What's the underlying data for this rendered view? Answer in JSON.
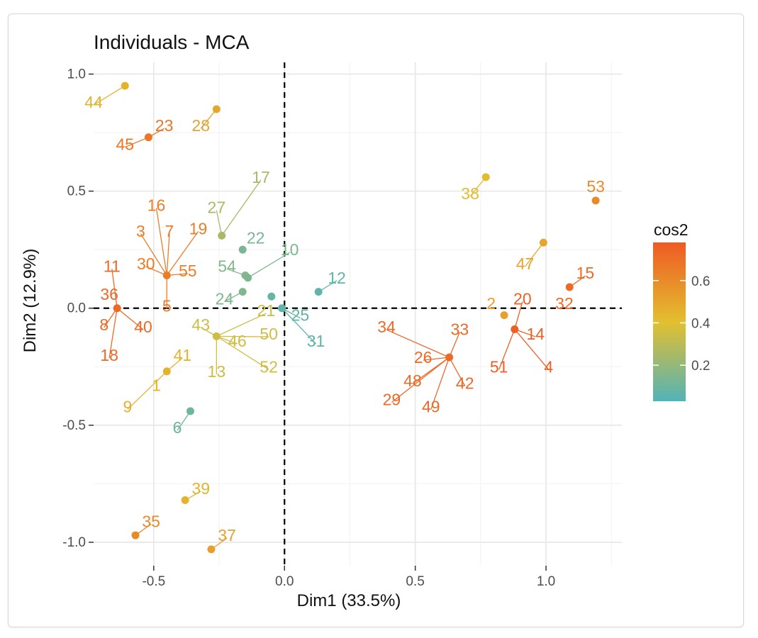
{
  "chart_data": {
    "type": "scatter",
    "title": "Individuals - MCA",
    "xlabel": "Dim1 (33.5%)",
    "ylabel": "Dim2 (12.9%)",
    "xlim": [
      -0.73,
      1.29
    ],
    "ylim": [
      -1.1,
      1.05
    ],
    "x_ticks": [
      {
        "value": -0.5,
        "label": "-0.5"
      },
      {
        "value": 0.0,
        "label": "0.0"
      },
      {
        "value": 0.5,
        "label": "0.5"
      },
      {
        "value": 1.0,
        "label": "1.0"
      }
    ],
    "y_ticks": [
      {
        "value": 1.0,
        "label": "1.0"
      },
      {
        "value": 0.5,
        "label": "0.5"
      },
      {
        "value": 0.0,
        "label": "0.0"
      },
      {
        "value": -0.5,
        "label": "-0.5"
      },
      {
        "value": -1.0,
        "label": "-1.0"
      }
    ],
    "grid": true,
    "reference_lines": {
      "x": 0,
      "y": 0,
      "style": "dashed"
    },
    "color_scale": {
      "name": "cos2",
      "colors": [
        "#52b3b8",
        "#e3bf2f",
        "#ef5a24"
      ],
      "ticks": [
        {
          "value": 0.2,
          "label": "0.2"
        },
        {
          "value": 0.4,
          "label": "0.4"
        },
        {
          "value": 0.6,
          "label": "0.6"
        }
      ],
      "range": [
        0.03,
        0.78
      ]
    },
    "points": [
      {
        "x": -0.61,
        "y": 0.95,
        "cos2": 0.45,
        "labels": [
          {
            "text": "44",
            "dx": -0.12,
            "dy": -0.07
          }
        ]
      },
      {
        "x": -0.26,
        "y": 0.85,
        "cos2": 0.5,
        "labels": [
          {
            "text": "28",
            "dx": -0.06,
            "dy": -0.07
          }
        ]
      },
      {
        "x": -0.52,
        "y": 0.73,
        "cos2": 0.68,
        "labels": [
          {
            "text": "23",
            "dx": 0.06,
            "dy": 0.05
          },
          {
            "text": "45",
            "dx": -0.09,
            "dy": -0.03
          }
        ]
      },
      {
        "x": -0.24,
        "y": 0.31,
        "cos2": 0.25,
        "labels": [
          {
            "text": "17",
            "dx": 0.15,
            "dy": 0.25
          },
          {
            "text": "27",
            "dx": -0.02,
            "dy": 0.12
          }
        ]
      },
      {
        "x": -0.16,
        "y": 0.25,
        "cos2": 0.13,
        "labels": [
          {
            "text": "22",
            "dx": 0.05,
            "dy": 0.05
          }
        ]
      },
      {
        "x": -0.15,
        "y": 0.14,
        "cos2": 0.16,
        "labels": [
          {
            "text": "54",
            "dx": -0.07,
            "dy": 0.04
          }
        ]
      },
      {
        "x": -0.14,
        "y": 0.13,
        "cos2": 0.14,
        "labels": [
          {
            "text": "10",
            "dx": 0.16,
            "dy": 0.12
          }
        ]
      },
      {
        "x": -0.16,
        "y": 0.07,
        "cos2": 0.15,
        "labels": [
          {
            "text": "24",
            "dx": -0.07,
            "dy": -0.03
          }
        ]
      },
      {
        "x": -0.05,
        "y": 0.05,
        "cos2": 0.08,
        "labels": []
      },
      {
        "x": 0.13,
        "y": 0.07,
        "cos2": 0.07,
        "labels": [
          {
            "text": "12",
            "dx": 0.07,
            "dy": 0.06
          }
        ]
      },
      {
        "x": -0.01,
        "y": 0.0,
        "cos2": 0.07,
        "labels": [
          {
            "text": "25",
            "dx": 0.07,
            "dy": -0.03
          },
          {
            "text": "31",
            "dx": 0.13,
            "dy": -0.14
          }
        ]
      },
      {
        "x": -0.45,
        "y": 0.14,
        "cos2": 0.65,
        "labels": [
          {
            "text": "16",
            "dx": -0.04,
            "dy": 0.3
          },
          {
            "text": "3",
            "dx": -0.1,
            "dy": 0.19
          },
          {
            "text": "7",
            "dx": 0.01,
            "dy": 0.19
          },
          {
            "text": "19",
            "dx": 0.12,
            "dy": 0.2
          },
          {
            "text": "30",
            "dx": -0.08,
            "dy": 0.05
          },
          {
            "text": "55",
            "dx": 0.08,
            "dy": 0.02
          },
          {
            "text": "5",
            "dx": 0.0,
            "dy": -0.13
          }
        ]
      },
      {
        "x": -0.64,
        "y": 0.0,
        "cos2": 0.72,
        "labels": [
          {
            "text": "11",
            "dx": -0.02,
            "dy": 0.18
          },
          {
            "text": "36",
            "dx": -0.03,
            "dy": 0.06
          },
          {
            "text": "8",
            "dx": -0.05,
            "dy": -0.07
          },
          {
            "text": "40",
            "dx": 0.1,
            "dy": -0.08
          },
          {
            "text": "18",
            "dx": -0.03,
            "dy": -0.2
          }
        ]
      },
      {
        "x": -0.26,
        "y": -0.12,
        "cos2": 0.35,
        "labels": [
          {
            "text": "21",
            "dx": 0.19,
            "dy": 0.11
          },
          {
            "text": "50",
            "dx": 0.2,
            "dy": 0.01
          },
          {
            "text": "43",
            "dx": -0.06,
            "dy": 0.05
          },
          {
            "text": "46",
            "dx": 0.08,
            "dy": -0.02
          },
          {
            "text": "13",
            "dx": 0.0,
            "dy": -0.15
          },
          {
            "text": "52",
            "dx": 0.2,
            "dy": -0.13
          }
        ]
      },
      {
        "x": -0.45,
        "y": -0.27,
        "cos2": 0.45,
        "labels": [
          {
            "text": "41",
            "dx": 0.06,
            "dy": 0.07
          },
          {
            "text": "1",
            "dx": -0.04,
            "dy": -0.06
          },
          {
            "text": "9",
            "dx": -0.15,
            "dy": -0.15
          }
        ]
      },
      {
        "x": -0.36,
        "y": -0.44,
        "cos2": 0.1,
        "labels": [
          {
            "text": "6",
            "dx": -0.05,
            "dy": -0.07
          }
        ]
      },
      {
        "x": -0.38,
        "y": -0.82,
        "cos2": 0.45,
        "labels": [
          {
            "text": "39",
            "dx": 0.06,
            "dy": 0.05
          }
        ]
      },
      {
        "x": -0.57,
        "y": -0.97,
        "cos2": 0.6,
        "labels": [
          {
            "text": "35",
            "dx": 0.06,
            "dy": 0.06
          }
        ]
      },
      {
        "x": -0.28,
        "y": -1.03,
        "cos2": 0.52,
        "labels": [
          {
            "text": "37",
            "dx": 0.06,
            "dy": 0.06
          }
        ]
      },
      {
        "x": 0.77,
        "y": 0.56,
        "cos2": 0.42,
        "labels": [
          {
            "text": "38",
            "dx": -0.06,
            "dy": -0.07
          }
        ]
      },
      {
        "x": 1.19,
        "y": 0.46,
        "cos2": 0.6,
        "labels": [
          {
            "text": "53",
            "dx": 0.0,
            "dy": 0.06
          }
        ]
      },
      {
        "x": 0.99,
        "y": 0.28,
        "cos2": 0.5,
        "labels": [
          {
            "text": "47",
            "dx": -0.07,
            "dy": -0.09
          }
        ]
      },
      {
        "x": 1.09,
        "y": 0.09,
        "cos2": 0.72,
        "labels": [
          {
            "text": "15",
            "dx": 0.06,
            "dy": 0.06
          },
          {
            "text": "32",
            "dx": -0.02,
            "dy": -0.07
          }
        ]
      },
      {
        "x": 0.84,
        "y": -0.03,
        "cos2": 0.52,
        "labels": [
          {
            "text": "2",
            "dx": -0.05,
            "dy": 0.05
          }
        ]
      },
      {
        "x": 0.88,
        "y": -0.09,
        "cos2": 0.76,
        "labels": [
          {
            "text": "20",
            "dx": 0.03,
            "dy": 0.13
          },
          {
            "text": "14",
            "dx": 0.08,
            "dy": -0.02
          },
          {
            "text": "51",
            "dx": -0.06,
            "dy": -0.16
          },
          {
            "text": "4",
            "dx": 0.13,
            "dy": -0.16
          }
        ]
      },
      {
        "x": 0.63,
        "y": -0.21,
        "cos2": 0.72,
        "labels": [
          {
            "text": "34",
            "dx": -0.24,
            "dy": 0.13
          },
          {
            "text": "33",
            "dx": 0.04,
            "dy": 0.12
          },
          {
            "text": "26",
            "dx": -0.1,
            "dy": 0.0
          },
          {
            "text": "48",
            "dx": -0.14,
            "dy": -0.1
          },
          {
            "text": "42",
            "dx": 0.06,
            "dy": -0.11
          },
          {
            "text": "29",
            "dx": -0.22,
            "dy": -0.18
          },
          {
            "text": "49",
            "dx": -0.07,
            "dy": -0.21
          }
        ]
      }
    ]
  }
}
